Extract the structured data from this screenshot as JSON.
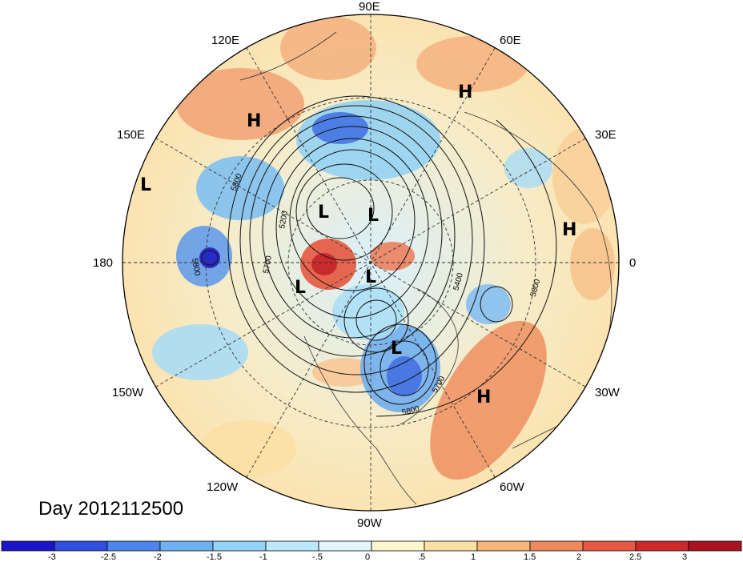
{
  "title": "Day 2012112500",
  "longitude_labels": [
    "90E",
    "60E",
    "30E",
    "0",
    "30W",
    "60W",
    "90W",
    "120W",
    "150W",
    "180",
    "150E",
    "120E"
  ],
  "pressure_systems": [
    "H",
    "H",
    "L",
    "L",
    "L",
    "L",
    "L",
    "L",
    "H",
    "H"
  ],
  "contour_labels": [
    "5800",
    "5200",
    "5700",
    "5800",
    "5400",
    "5700",
    "5800",
    "5800",
    "5700"
  ],
  "colorbar": {
    "ticks": [
      "-3",
      "-2.5",
      "-2",
      "-1.5",
      "-1",
      "-.5",
      "0",
      ".5",
      "1",
      "1.5",
      "2",
      "2.5",
      "3"
    ],
    "colors": [
      "#1a16c8",
      "#2e4fe0",
      "#4d86ea",
      "#6fb2f2",
      "#93d3f7",
      "#bde8fb",
      "#e4f6fd",
      "#fdf6cf",
      "#fbe0a4",
      "#f6b57b",
      "#ef8a5e",
      "#e65a45",
      "#cc2a2a",
      "#a8131f"
    ]
  }
}
